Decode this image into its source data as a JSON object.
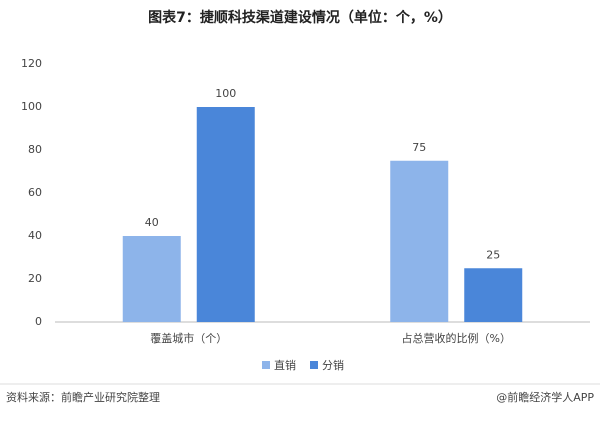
{
  "chart_data": {
    "type": "bar",
    "title": "图表7：捷顺科技渠道建设情况（单位：个，%）",
    "categories": [
      "覆盖城市（个）",
      "占总营收的比例（%）"
    ],
    "series": [
      {
        "name": "直销",
        "color": "#8db4ea",
        "values": [
          40,
          75
        ]
      },
      {
        "name": "分销",
        "color": "#4a86d9",
        "values": [
          100,
          25
        ]
      }
    ],
    "ylim": [
      0,
      120
    ],
    "yticks": [
      0,
      20,
      40,
      60,
      80,
      100,
      120
    ],
    "grid": false,
    "legend": "bottom"
  },
  "footer": {
    "source": "资料来源：前瞻产业研究院整理",
    "brand": "@前瞻经济学人APP"
  }
}
